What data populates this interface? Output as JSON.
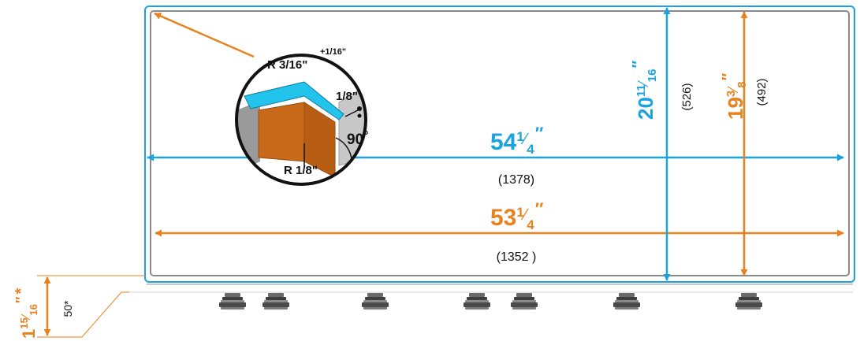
{
  "colors": {
    "blue": "#1aa3e0",
    "orange": "#e8821e",
    "panel_inner": "#8a8a8a",
    "copper": "#c96a1a",
    "cyan_edge": "#22c4ec",
    "gray_wall": "#c8c8c8",
    "foot": "#5a5a5a"
  },
  "outer_width": {
    "whole": "54",
    "num": "1",
    "den": "4",
    "mark": "″",
    "mm": "(1378)"
  },
  "inner_width": {
    "whole": "53",
    "num": "1",
    "den": "4",
    "mark": "″",
    "mm": "(1352 )"
  },
  "outer_height": {
    "whole": "20",
    "num": "11",
    "den": "16",
    "mark": "″",
    "mm": "(526)"
  },
  "inner_height": {
    "whole": "19",
    "num": "3",
    "den": "8",
    "mark": "″",
    "mm": "(492)"
  },
  "base_height": {
    "whole": "1",
    "num": "15",
    "den": "16",
    "mark": "″",
    "star": "*",
    "mm": "50*"
  },
  "detail": {
    "tolerance": "+1/16\"",
    "top_radius": "R 3/16\"",
    "gap": "1/8\"",
    "angle": "90",
    "degree": "°",
    "bottom_radius": "R 1/8\""
  },
  "feet_count": 7
}
